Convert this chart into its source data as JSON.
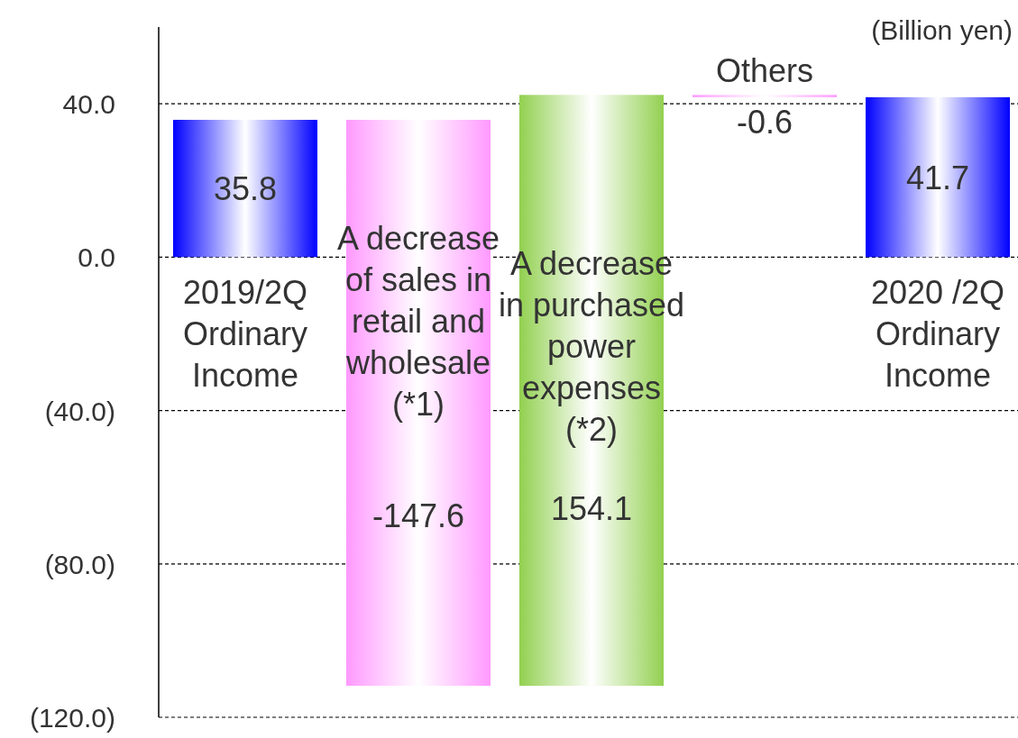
{
  "chart_data": {
    "type": "bar",
    "categories": [
      "2019/2Q Ordinary Income",
      "A decrease of sales in retail and wholesale (*1)",
      "A decrease in purchased power expenses (*2)",
      "Others",
      "2020 /2Q Ordinary Income"
    ],
    "values": [
      35.8,
      -147.6,
      154.1,
      -0.6,
      41.7
    ],
    "base": [
      0,
      35.8,
      -111.8,
      42.3,
      0
    ],
    "colors": [
      "#0000ff",
      "#ff99ff",
      "#92d050",
      "#ff99ff",
      "#0000ff"
    ],
    "data_labels": true,
    "ylim": [
      -120,
      60
    ],
    "yticks": [
      {
        "value": -120,
        "label": "(120.0)"
      },
      {
        "value": -80,
        "label": "(80.0)"
      },
      {
        "value": -40,
        "label": "(40.0)"
      },
      {
        "value": 0,
        "label": "0.0"
      },
      {
        "value": 40,
        "label": "40.0"
      }
    ],
    "grid": "y",
    "annotations": [
      "(Billion yen)"
    ]
  }
}
